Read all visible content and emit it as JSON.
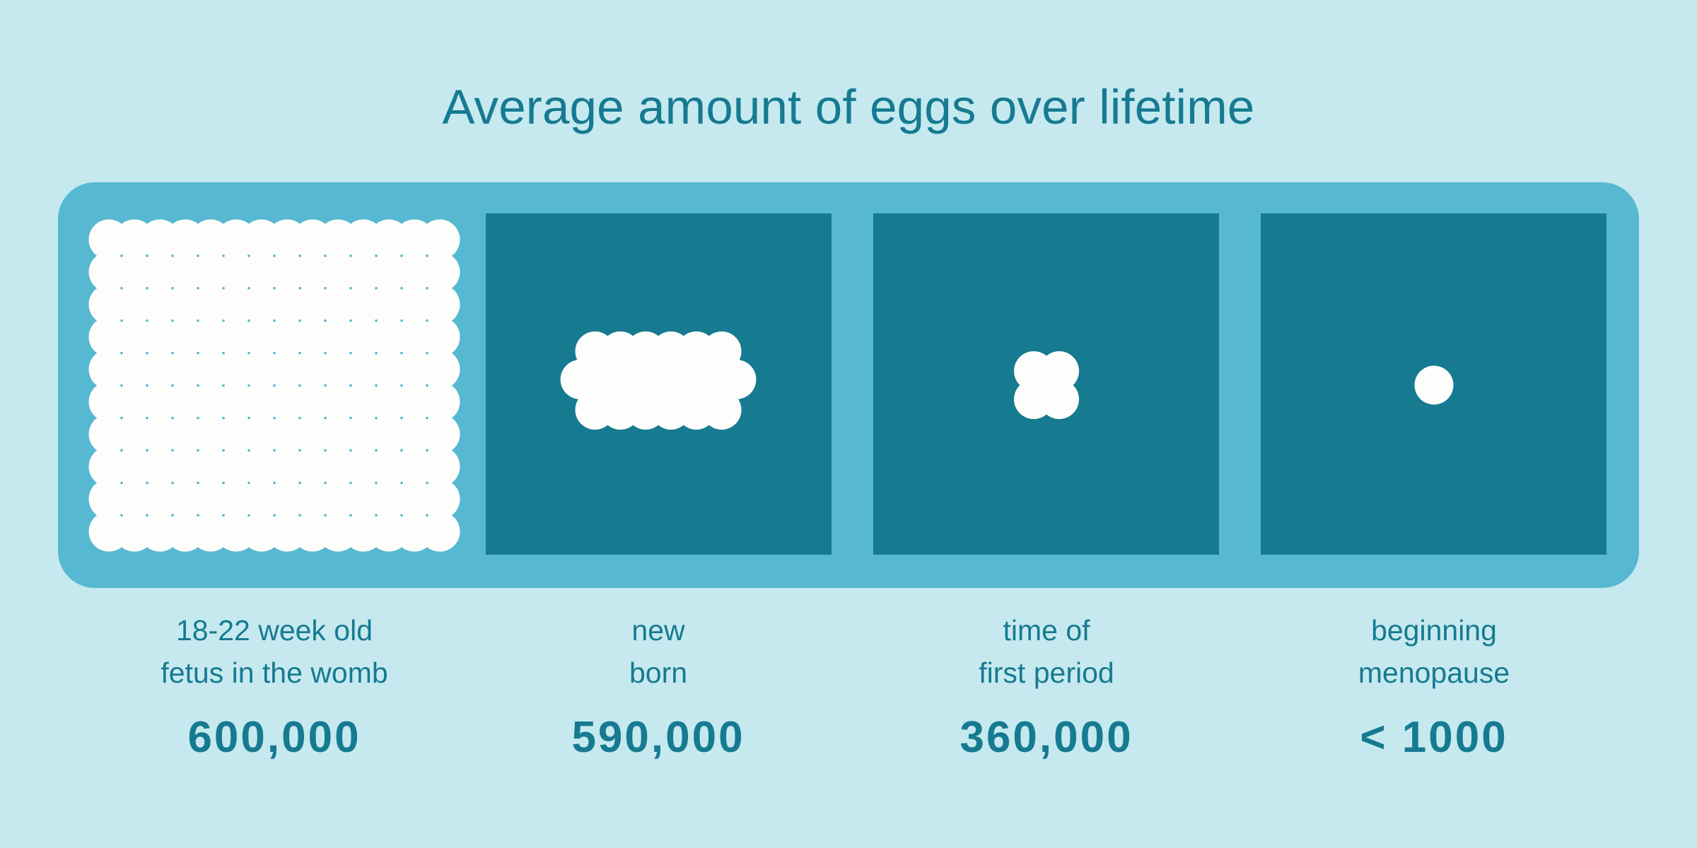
{
  "title": "Average amount of eggs over lifetime",
  "colors": {
    "background": "#C5E9EF",
    "frame": "#56B8D1",
    "panel": "#167A91",
    "egg": "#FDFDFC",
    "text": "#167A91"
  },
  "stages": [
    {
      "label_line1": "18-22 week old",
      "label_line2": "fetus in the womb",
      "value": "600,000"
    },
    {
      "label_line1": "new",
      "label_line2": "born",
      "value": "590,000"
    },
    {
      "label_line1": "time of",
      "label_line2": "first period",
      "value": "360,000"
    },
    {
      "label_line1": "beginning",
      "label_line2": "menopause",
      "value": "< 1000"
    }
  ],
  "chart_data": {
    "type": "bar",
    "title": "Average amount of eggs over lifetime",
    "categories": [
      "18-22 week old fetus in the womb",
      "new born",
      "time of first period",
      "beginning menopause"
    ],
    "values": [
      600000,
      590000,
      360000,
      1000
    ],
    "value_labels": [
      "600,000",
      "590,000",
      "360,000",
      "< 1000"
    ],
    "xlabel": "",
    "ylabel": "",
    "representation": "pictogram (area of white egg cluster proportional to count)",
    "pictogram_circles": [
      {
        "rows": [
          14,
          14,
          14,
          14,
          14,
          14,
          14,
          14,
          14,
          14
        ]
      },
      {
        "rows": [
          6,
          7,
          6
        ]
      },
      {
        "rows": [
          2,
          2
        ]
      },
      {
        "rows": [
          1
        ]
      }
    ],
    "grid": false,
    "legend": null
  }
}
